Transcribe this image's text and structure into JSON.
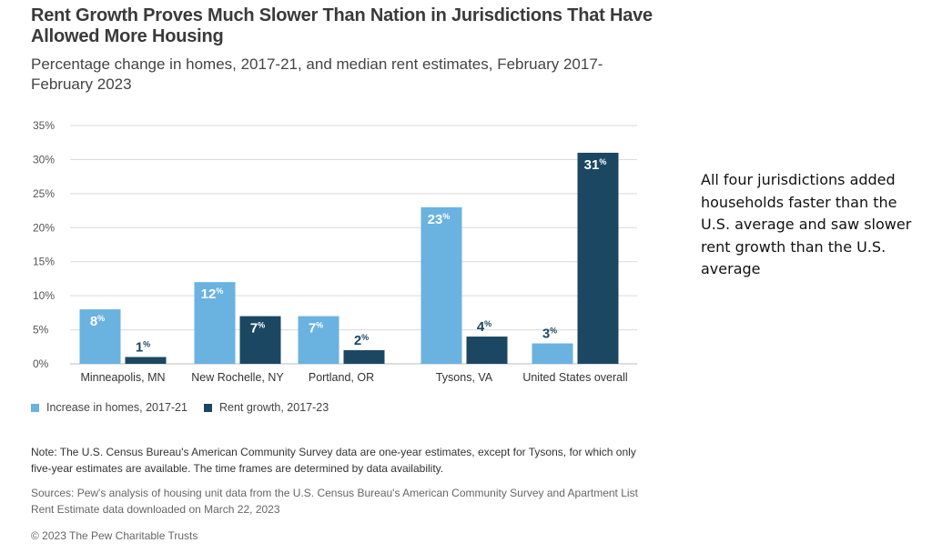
{
  "title": "Rent Growth Proves Much Slower Than Nation in Jurisdictions That Have Allowed More Housing",
  "subtitle": "Percentage change in homes, 2017-21, and median rent estimates, February 2017-February 2023",
  "chart_data": {
    "type": "bar",
    "categories": [
      "Minneapolis, MN",
      "New Rochelle, NY",
      "Portland, OR",
      "Tysons, VA",
      "United States overall"
    ],
    "series": [
      {
        "name": "Increase in homes, 2017-21",
        "values": [
          8,
          12,
          7,
          23,
          3
        ],
        "color": "#6ab2e0"
      },
      {
        "name": "Rent growth, 2017-23",
        "values": [
          1,
          7,
          2,
          4,
          31
        ],
        "color": "#1b4763"
      }
    ],
    "y_ticks": [
      "0%",
      "5%",
      "10%",
      "15%",
      "20%",
      "25%",
      "30%",
      "35%"
    ],
    "ylim": [
      0,
      35
    ],
    "value_suffix": "%",
    "grid": true,
    "legend_position": "bottom-left",
    "label_color_light_bar": "#ffffff",
    "label_color_small_bar": "#1b4763"
  },
  "legend": {
    "homes": "Increase in homes, 2017-21",
    "rent": "Rent growth, 2017-23"
  },
  "note": "Note: The U.S. Census Bureau's American Community Survey data are one-year estimates, except for Tysons, for which only five-year estimates are available. The time frames are determined by data availability.",
  "sources": "Sources: Pew's analysis of housing unit data from the U.S. Census Bureau's American Community Survey and Apartment List Rent Estimate data downloaded on March 22, 2023",
  "copyright": "© 2023 The Pew Charitable Trusts",
  "side_text": "All four jurisdictions added households faster than the U.S. average and saw slower rent growth than the U.S. average",
  "colors": {
    "homes": "#6ab2e0",
    "rent": "#1b4763",
    "grid": "#d9d9d9"
  }
}
